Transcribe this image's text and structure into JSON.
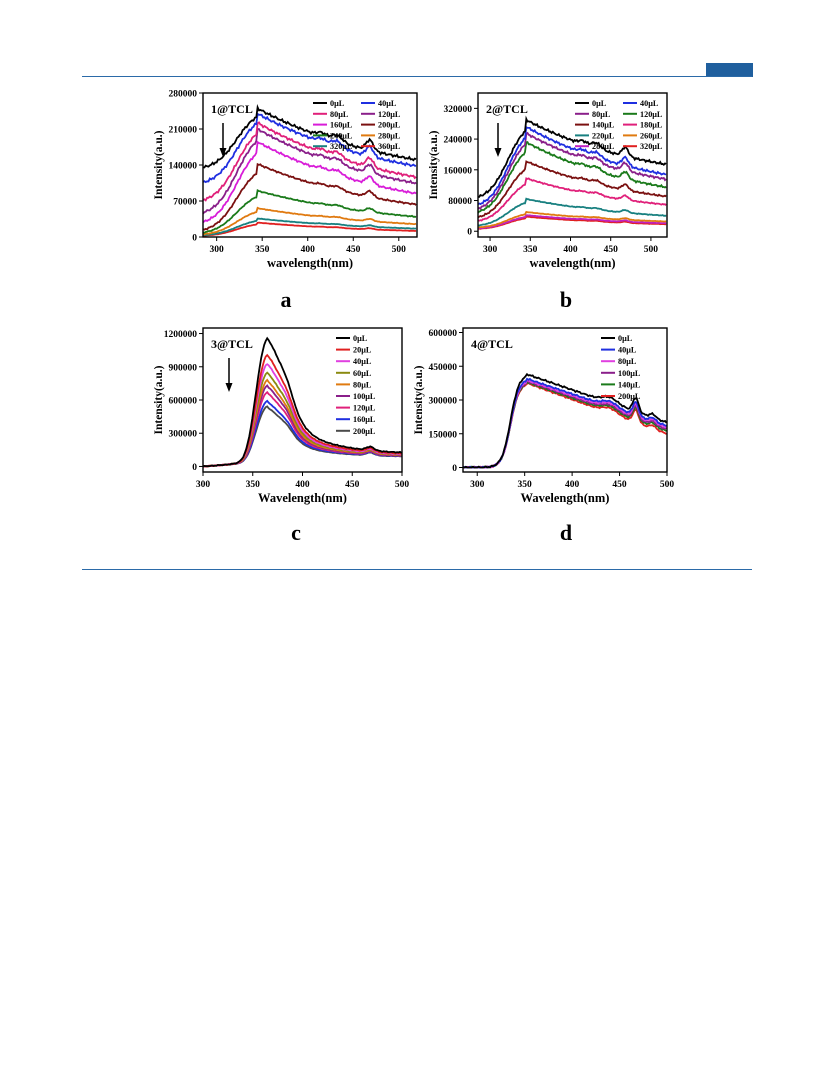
{
  "header": {
    "accent_color": "#1f5f9e",
    "rule_color": "#2b6aa8"
  },
  "chart_data": [
    {
      "type": "line",
      "panel_label": "a",
      "annotation": "1@TCL",
      "xlabel": "wavelength(nm)",
      "ylabel": "Intensity(a.u.)",
      "xlim": [
        285,
        520
      ],
      "ylim": [
        0,
        280000
      ],
      "xticks": [
        300,
        400,
        500
      ],
      "xticks_minor": [
        350,
        450
      ],
      "yticks": [
        0,
        70000,
        140000,
        210000,
        280000
      ],
      "xticklabels": [
        "300",
        "350",
        "400",
        "450",
        "500"
      ],
      "yticklabels": [
        "0",
        "70000",
        "140000",
        "210000",
        "280000"
      ],
      "shape": "broad",
      "legend_columns": 2,
      "series": [
        {
          "name": "0μL",
          "color": "#000000",
          "peak": 250000,
          "base": 130000,
          "tail": 108000
        },
        {
          "name": "40μL",
          "color": "#1f2fe0",
          "peak": 240000,
          "base": 100000,
          "tail": 95000
        },
        {
          "name": "80μL",
          "color": "#e0207a",
          "peak": 222000,
          "base": 65000,
          "tail": 72000
        },
        {
          "name": "120μL",
          "color": "#8a1f8a",
          "peak": 210000,
          "base": 40000,
          "tail": 60000
        },
        {
          "name": "160μL",
          "color": "#d81cd8",
          "peak": 185000,
          "base": 22000,
          "tail": 42000
        },
        {
          "name": "200μL",
          "color": "#7a1010",
          "peak": 142000,
          "base": 8000,
          "tail": 30000
        },
        {
          "name": "240μL",
          "color": "#1a7a1a",
          "peak": 90000,
          "base": 5000,
          "tail": 18000
        },
        {
          "name": "280μL",
          "color": "#e07a10",
          "peak": 56000,
          "base": 3000,
          "tail": 12000
        },
        {
          "name": "320μL",
          "color": "#188080",
          "peak": 36000,
          "base": 2000,
          "tail": 8000
        },
        {
          "name": "360μL",
          "color": "#e02020",
          "peak": 28000,
          "base": 1500,
          "tail": 5000
        }
      ]
    },
    {
      "type": "line",
      "panel_label": "b",
      "annotation": "2@TCL",
      "xlabel": "wavelength(nm)",
      "ylabel": "Intensity(a.u.)",
      "xlim": [
        285,
        520
      ],
      "ylim": [
        -15000,
        360000
      ],
      "xticks": [
        300,
        350,
        400,
        450,
        500
      ],
      "yticks": [
        0,
        80000,
        160000,
        240000,
        320000
      ],
      "xticklabels": [
        "300",
        "350",
        "400",
        "450",
        "500"
      ],
      "yticklabels": [
        "0",
        "80000",
        "160000",
        "240000",
        "320000"
      ],
      "shape": "broad",
      "legend_columns": 2,
      "series": [
        {
          "name": "0μL",
          "color": "#000000",
          "peak": 290000,
          "base": 80000,
          "tail": 125000
        },
        {
          "name": "40μL",
          "color": "#1f2fe0",
          "peak": 272000,
          "base": 60000,
          "tail": 95000
        },
        {
          "name": "80μL",
          "color": "#8a1f8a",
          "peak": 255000,
          "base": 50000,
          "tail": 85000
        },
        {
          "name": "120μL",
          "color": "#1a7a1a",
          "peak": 232000,
          "base": 42000,
          "tail": 65000
        },
        {
          "name": "140μL",
          "color": "#7a1010",
          "peak": 182000,
          "base": 30000,
          "tail": 52000
        },
        {
          "name": "180μL",
          "color": "#e0207a",
          "peak": 138000,
          "base": 22000,
          "tail": 40000
        },
        {
          "name": "220μL",
          "color": "#188080",
          "peak": 84000,
          "base": 12000,
          "tail": 22000
        },
        {
          "name": "260μL",
          "color": "#e07a10",
          "peak": 50000,
          "base": 8000,
          "tail": 15000
        },
        {
          "name": "280μL",
          "color": "#c020c0",
          "peak": 42000,
          "base": 6000,
          "tail": 12000
        },
        {
          "name": "320μL",
          "color": "#e02020",
          "peak": 38000,
          "base": 5000,
          "tail": 10000
        }
      ]
    },
    {
      "type": "line",
      "panel_label": "c",
      "annotation": "3@TCL",
      "xlabel": "Wavelength(nm)",
      "ylabel": "Intensity(a.u.)",
      "xlim": [
        300,
        500
      ],
      "ylim": [
        -50000,
        1250000
      ],
      "xticks": [
        300,
        350,
        400,
        450,
        500
      ],
      "yticks": [
        0,
        300000,
        600000,
        900000,
        1200000
      ],
      "xticklabels": [
        "300",
        "350",
        "400",
        "450",
        "500"
      ],
      "yticklabels": [
        "0",
        "300000",
        "600000",
        "900000",
        "1200000"
      ],
      "shape": "narrow",
      "legend_columns": 1,
      "series": [
        {
          "name": "0μL",
          "color": "#000000",
          "peak": 1150000,
          "tail": 110000
        },
        {
          "name": "20μL",
          "color": "#e02020",
          "peak": 1000000,
          "tail": 105000
        },
        {
          "name": "40μL",
          "color": "#e040e0",
          "peak": 920000,
          "tail": 100000
        },
        {
          "name": "60μL",
          "color": "#8a8a10",
          "peak": 840000,
          "tail": 98000
        },
        {
          "name": "80μL",
          "color": "#e07a10",
          "peak": 770000,
          "tail": 95000
        },
        {
          "name": "100μL",
          "color": "#8a1f8a",
          "peak": 720000,
          "tail": 92000
        },
        {
          "name": "120μL",
          "color": "#e0207a",
          "peak": 660000,
          "tail": 90000
        },
        {
          "name": "160μL",
          "color": "#1f2fe0",
          "peak": 580000,
          "tail": 88000
        },
        {
          "name": "200μL",
          "color": "#4a4a4a",
          "peak": 530000,
          "tail": 85000
        }
      ]
    },
    {
      "type": "line",
      "panel_label": "d",
      "annotation": "4@TCL",
      "xlabel": "Wavelength(nm)",
      "ylabel": "Intensity(a.u.)",
      "xlim": [
        285,
        500
      ],
      "ylim": [
        -20000,
        620000
      ],
      "xticks": [
        300,
        350,
        400,
        450,
        500
      ],
      "yticks": [
        0,
        150000,
        300000,
        450000,
        600000
      ],
      "xticklabels": [
        "300",
        "350",
        "400",
        "450",
        "500"
      ],
      "yticklabels": [
        "0",
        "150000",
        "300000",
        "450000",
        "600000"
      ],
      "shape": "plateau",
      "legend_columns": 1,
      "series": [
        {
          "name": "0μL",
          "color": "#000000",
          "peak": 415000,
          "tail": 200000
        },
        {
          "name": "40μL",
          "color": "#1f2fe0",
          "peak": 395000,
          "tail": 185000
        },
        {
          "name": "80μL",
          "color": "#e040e0",
          "peak": 388000,
          "tail": 178000
        },
        {
          "name": "100μL",
          "color": "#8a1f8a",
          "peak": 384000,
          "tail": 170000
        },
        {
          "name": "140μL",
          "color": "#1a7a1a",
          "peak": 380000,
          "tail": 162000
        },
        {
          "name": "200μL",
          "color": "#e02020",
          "peak": 376000,
          "tail": 150000
        }
      ]
    }
  ]
}
